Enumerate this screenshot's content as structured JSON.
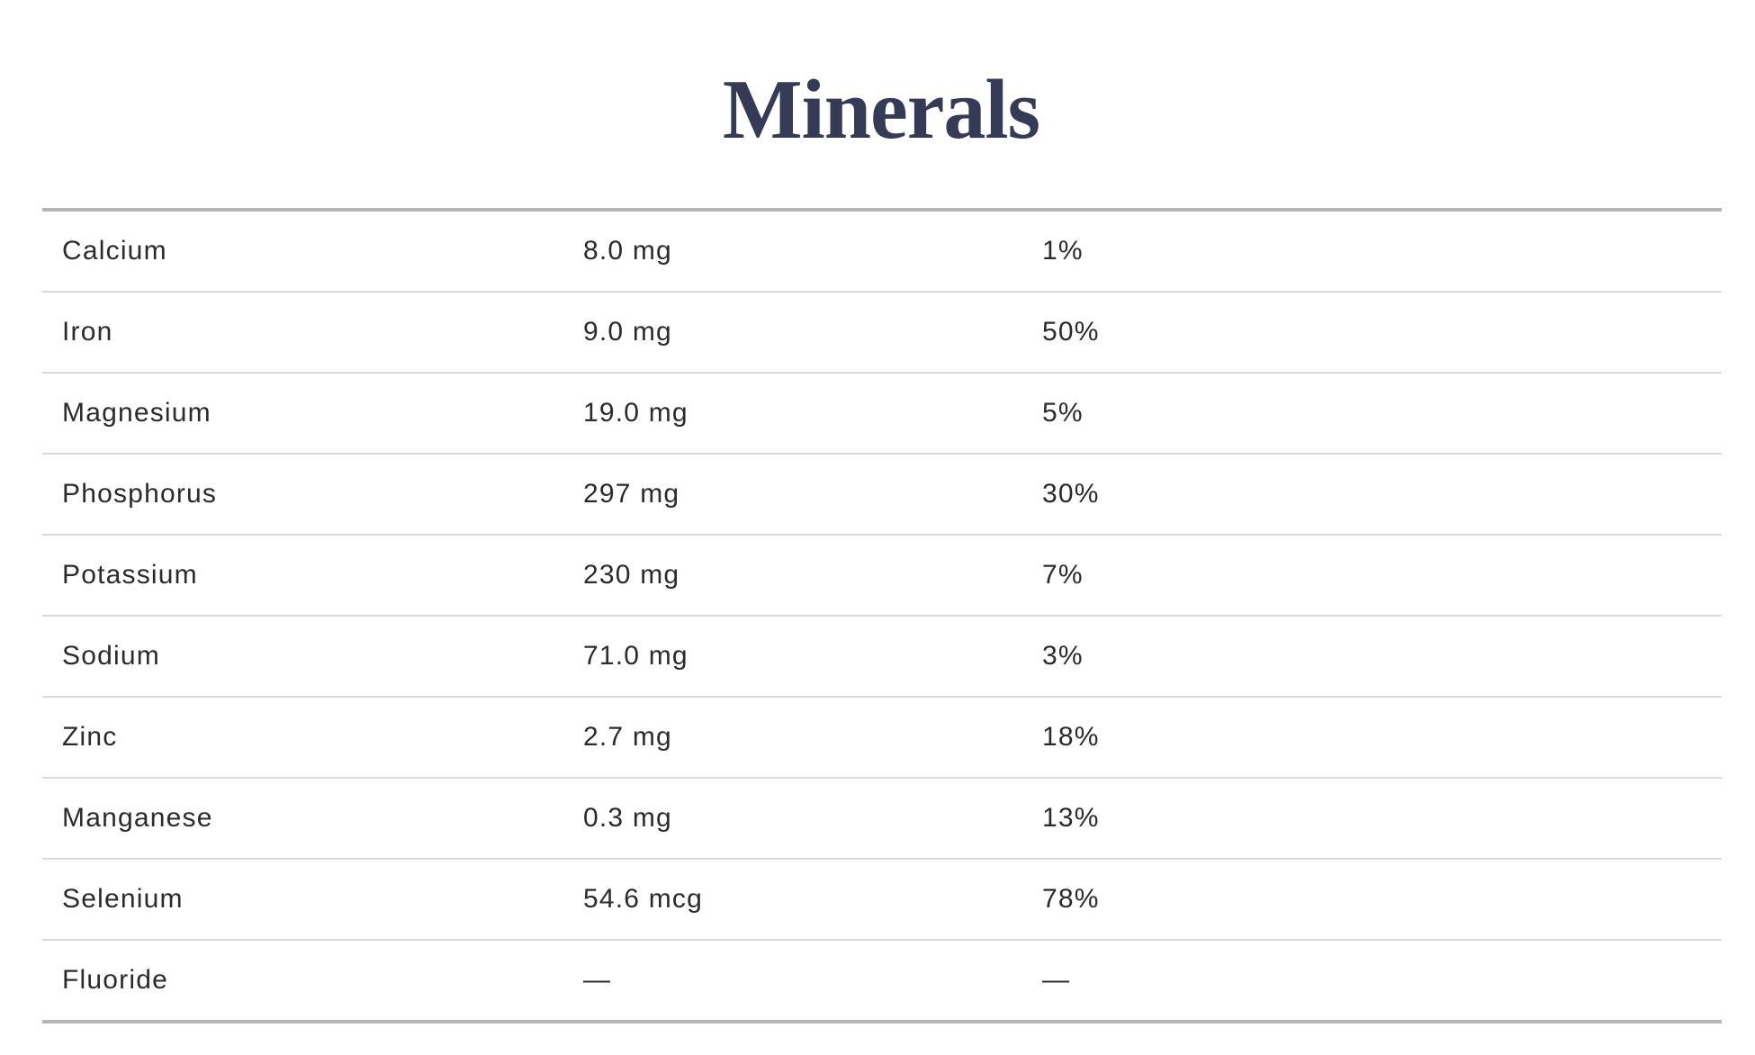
{
  "title": "Minerals",
  "rows": [
    {
      "name": "Calcium",
      "amount": "8.0 mg",
      "dv": "1%"
    },
    {
      "name": "Iron",
      "amount": "9.0 mg",
      "dv": "50%"
    },
    {
      "name": "Magnesium",
      "amount": "19.0 mg",
      "dv": "5%"
    },
    {
      "name": "Phosphorus",
      "amount": "297 mg",
      "dv": "30%"
    },
    {
      "name": "Potassium",
      "amount": "230 mg",
      "dv": "7%"
    },
    {
      "name": "Sodium",
      "amount": "71.0 mg",
      "dv": "3%"
    },
    {
      "name": "Zinc",
      "amount": "2.7 mg",
      "dv": "18%"
    },
    {
      "name": "Manganese",
      "amount": "0.3 mg",
      "dv": "13%"
    },
    {
      "name": "Selenium",
      "amount": "54.6 mcg",
      "dv": "78%"
    },
    {
      "name": "Fluoride",
      "amount": "—",
      "dv": "—"
    }
  ]
}
